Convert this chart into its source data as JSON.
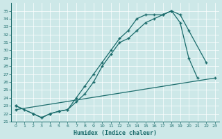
{
  "xlabel": "Humidex (Indice chaleur)",
  "xlim": [
    -0.5,
    23.5
  ],
  "ylim": [
    21,
    36
  ],
  "yticks": [
    21,
    22,
    23,
    24,
    25,
    26,
    27,
    28,
    29,
    30,
    31,
    32,
    33,
    34,
    35
  ],
  "xticks": [
    0,
    1,
    2,
    3,
    4,
    5,
    6,
    7,
    8,
    9,
    10,
    11,
    12,
    13,
    14,
    15,
    16,
    17,
    18,
    19,
    20,
    21,
    22,
    23
  ],
  "bg_color": "#cde8e8",
  "line_color": "#1a6b6b",
  "grid_color": "#b0d0d0",
  "line1_x": [
    0,
    1,
    2,
    3,
    4,
    5,
    6,
    7,
    8,
    9,
    10,
    11,
    12,
    13,
    14,
    15,
    16,
    17,
    18,
    19,
    20,
    22
  ],
  "line1_y": [
    23.0,
    22.5,
    22.0,
    21.5,
    22.0,
    22.3,
    22.5,
    23.5,
    24.5,
    26.0,
    28.0,
    29.5,
    31.0,
    31.5,
    32.5,
    33.5,
    34.0,
    34.5,
    35.0,
    34.5,
    32.5,
    28.5
  ],
  "line2_x": [
    0,
    2,
    3,
    4,
    5,
    6,
    7,
    8,
    9,
    10,
    11,
    12,
    13,
    14,
    15,
    16,
    17,
    18,
    19,
    20,
    21
  ],
  "line2_y": [
    23.0,
    22.0,
    21.5,
    22.0,
    22.3,
    22.5,
    24.0,
    25.5,
    27.0,
    28.5,
    30.0,
    31.5,
    32.5,
    34.0,
    34.5,
    34.5,
    34.5,
    35.0,
    33.5,
    29.0,
    26.5
  ],
  "line3_x": [
    0,
    23
  ],
  "line3_y": [
    22.5,
    26.5
  ]
}
